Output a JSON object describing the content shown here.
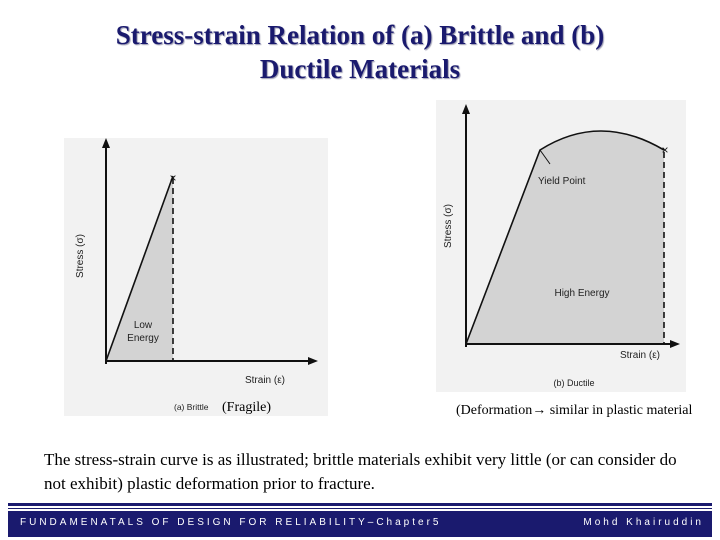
{
  "slide": {
    "title_line1": "Stress-strain Relation of (a) Brittle and (b)",
    "title_line2": "Ductile Materials",
    "body_text": "The stress-strain curve is as illustrated; brittle materials exhibit very little (or can consider do not exhibit) plastic deformation prior to fracture.",
    "footer_left": "FUNDAMENATALS OF DESIGN FOR RELIABILITY–Chapter5",
    "footer_right": "Mohd Khairuddin"
  },
  "figure_a": {
    "y_axis_label": "Stress (σ)",
    "x_axis_label": "Strain (ε)",
    "region_label_line1": "Low",
    "region_label_line2": "Energy",
    "fracture_mark": "×",
    "caption_prefix": "(a) Brittle",
    "caption_note": "(Fragile)"
  },
  "figure_b": {
    "y_axis_label": "Stress (σ)",
    "x_axis_label": "Strain (ε)",
    "yield_label": "Yield Point",
    "region_label": "High Energy",
    "fracture_mark": "×",
    "caption": "(b) Ductile",
    "note": "(Deformation→ similar in plastic material"
  },
  "colors": {
    "title": "#1a1a6e",
    "footer_bg": "#1a1a6e",
    "shade": "#d3d3d3",
    "figure_bg": "#f2f2f2"
  }
}
